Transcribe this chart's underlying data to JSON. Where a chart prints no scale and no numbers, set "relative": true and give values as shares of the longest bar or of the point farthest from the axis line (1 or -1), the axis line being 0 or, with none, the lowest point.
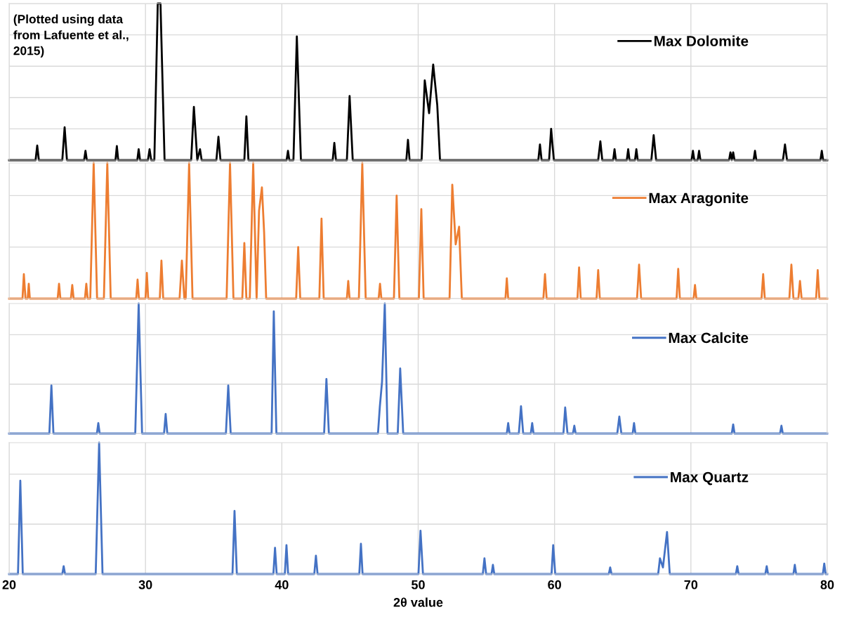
{
  "chart_data": [
    {
      "type": "line",
      "relative": true,
      "xlim": [
        20,
        80
      ],
      "xticks": [
        20,
        30,
        40,
        50,
        60,
        70,
        80
      ],
      "tick_labels": false,
      "grid": true,
      "legend": "top right",
      "marker": "none",
      "annotations": [
        "(Plotted using data\nfrom Lafuente et al.,\n2015)"
      ],
      "series": [
        {
          "name": "Max Dolomite",
          "color": "#000000",
          "x": [
            20,
            21.94,
            22.06,
            22.18,
            23.9,
            24.07,
            24.24,
            25.5,
            25.6,
            25.7,
            27.8,
            27.9,
            28.0,
            29.4,
            29.5,
            29.6,
            30.18,
            30.3,
            30.42,
            30.65,
            30.9,
            31.1,
            31.4,
            33.35,
            33.55,
            33.8,
            34.0,
            34.12,
            35.2,
            35.35,
            35.5,
            37.25,
            37.4,
            37.55,
            40.35,
            40.45,
            40.55,
            40.85,
            41.1,
            41.4,
            43.73,
            43.85,
            43.97,
            44.77,
            44.97,
            45.2,
            49.13,
            49.25,
            49.37,
            50.25,
            50.48,
            50.8,
            51.1,
            51.4,
            51.6,
            58.81,
            58.93,
            59.05,
            59.6,
            59.75,
            59.95,
            63.2,
            63.36,
            63.5,
            64.3,
            64.4,
            64.5,
            65.3,
            65.4,
            65.5,
            65.9,
            66.0,
            66.1,
            67.1,
            67.27,
            67.45,
            70.05,
            70.15,
            70.25,
            70.5,
            70.6,
            70.7,
            72.8,
            72.9,
            73.0,
            73.1,
            73.2,
            74.6,
            74.7,
            74.8,
            76.75,
            76.9,
            77.05,
            79.5,
            79.6,
            79.7,
            80
          ],
          "values": [
            0,
            0,
            0.094,
            0,
            0,
            0.21,
            0,
            0,
            0.06,
            0,
            0,
            0.09,
            0,
            0,
            0.07,
            0,
            0,
            0.07,
            0,
            0,
            1,
            1,
            0,
            0,
            0.34,
            0,
            0.07,
            0,
            0,
            0.15,
            0,
            0,
            0.28,
            0,
            0,
            0.06,
            0,
            0,
            0.79,
            0,
            0,
            0.11,
            0,
            0,
            0.41,
            0,
            0,
            0.13,
            0,
            0,
            0.51,
            0.3,
            0.61,
            0.35,
            0,
            0,
            0.1,
            0,
            0,
            0.2,
            0,
            0,
            0.12,
            0,
            0,
            0.07,
            0,
            0,
            0.07,
            0,
            0,
            0.07,
            0,
            0,
            0.16,
            0,
            0,
            0.06,
            0,
            0,
            0.06,
            0,
            0,
            0.05,
            0,
            0.05,
            0,
            0,
            0.06,
            0,
            0,
            0.1,
            0,
            0,
            0.06,
            0,
            0
          ]
        }
      ]
    },
    {
      "type": "line",
      "relative": true,
      "xlim": [
        20,
        80
      ],
      "xticks": [
        20,
        30,
        40,
        50,
        60,
        70,
        80
      ],
      "tick_labels": false,
      "grid": true,
      "legend": "top right",
      "marker": "none",
      "series": [
        {
          "name": "Max Aragonite",
          "color": "#ed7d31",
          "x": [
            20,
            20.98,
            21.08,
            21.2,
            21.36,
            21.44,
            21.52,
            23.56,
            23.66,
            23.76,
            24.53,
            24.63,
            24.73,
            25.56,
            25.66,
            25.76,
            25.95,
            26.2,
            26.45,
            26.95,
            27.2,
            27.45,
            29.32,
            29.42,
            29.52,
            30.0,
            30.1,
            30.2,
            31.05,
            31.17,
            31.3,
            32.5,
            32.67,
            32.85,
            32.95,
            33.2,
            33.45,
            35.95,
            36.2,
            36.45,
            37.1,
            37.25,
            37.4,
            37.65,
            37.9,
            38.15,
            38.33,
            38.54,
            38.7,
            38.85,
            41.05,
            41.2,
            41.35,
            42.75,
            42.91,
            43.07,
            44.77,
            44.87,
            44.97,
            45.65,
            45.9,
            46.15,
            47.1,
            47.2,
            47.3,
            48.22,
            48.42,
            48.62,
            50.05,
            50.23,
            50.4,
            52.3,
            52.5,
            52.75,
            53.0,
            53.2,
            56.4,
            56.5,
            56.6,
            59.18,
            59.3,
            59.42,
            61.68,
            61.8,
            61.92,
            63.08,
            63.2,
            63.32,
            66.05,
            66.2,
            66.35,
            68.95,
            69.07,
            69.19,
            70.2,
            70.3,
            70.4,
            75.18,
            75.3,
            75.42,
            77.22,
            77.37,
            77.52,
            77.88,
            78.0,
            78.12,
            79.18,
            79.3,
            79.42,
            80
          ],
          "values": [
            0,
            0,
            0.18,
            0,
            0,
            0.11,
            0,
            0,
            0.11,
            0,
            0,
            0.1,
            0,
            0,
            0.11,
            0,
            0,
            1,
            0,
            0,
            1,
            0,
            0,
            0.14,
            0,
            0,
            0.19,
            0,
            0,
            0.28,
            0,
            0,
            0.28,
            0,
            0,
            1,
            0,
            0,
            1,
            0,
            0,
            0.41,
            0,
            0,
            1,
            0,
            0.65,
            0.82,
            0.49,
            0,
            0,
            0.38,
            0,
            0,
            0.59,
            0,
            0,
            0.13,
            0,
            0,
            1,
            0,
            0,
            0.11,
            0,
            0,
            0.76,
            0,
            0,
            0.66,
            0,
            0,
            0.84,
            0.4,
            0.53,
            0,
            0,
            0.15,
            0,
            0,
            0.18,
            0,
            0,
            0.23,
            0,
            0,
            0.21,
            0,
            0,
            0.25,
            0,
            0,
            0.22,
            0,
            0,
            0.1,
            0,
            0,
            0.18,
            0,
            0,
            0.25,
            0,
            0,
            0.13,
            0,
            0,
            0.21,
            0,
            0
          ]
        }
      ]
    },
    {
      "type": "line",
      "relative": true,
      "xlim": [
        20,
        80
      ],
      "xticks": [
        20,
        30,
        40,
        50,
        60,
        70,
        80
      ],
      "tick_labels": false,
      "grid": true,
      "legend": "top right",
      "marker": "none",
      "series": [
        {
          "name": "Max Calcite",
          "color": "#4472c4",
          "x": [
            20,
            22.95,
            23.1,
            23.25,
            26.44,
            26.54,
            26.64,
            29.25,
            29.5,
            29.75,
            31.36,
            31.48,
            31.6,
            35.9,
            36.07,
            36.25,
            39.25,
            39.41,
            39.6,
            43.1,
            43.27,
            43.45,
            47.05,
            47.19,
            47.35,
            47.55,
            47.75,
            48.5,
            48.68,
            48.9,
            56.5,
            56.6,
            56.7,
            57.38,
            57.54,
            57.7,
            58.26,
            58.36,
            58.46,
            60.65,
            60.78,
            60.95,
            61.35,
            61.45,
            61.55,
            64.6,
            64.75,
            64.9,
            65.73,
            65.83,
            65.93,
            73.0,
            73.1,
            73.2,
            76.54,
            76.64,
            76.74,
            80
          ],
          "values": [
            0,
            0,
            0.37,
            0,
            0,
            0.08,
            0,
            0,
            1,
            0,
            0,
            0.15,
            0,
            0,
            0.37,
            0,
            0,
            0.94,
            0,
            0,
            0.42,
            0,
            0,
            0.21,
            0.4,
            1,
            0,
            0,
            0.5,
            0,
            0,
            0.08,
            0,
            0,
            0.21,
            0,
            0,
            0.08,
            0,
            0,
            0.2,
            0,
            0,
            0.06,
            0,
            0,
            0.13,
            0,
            0,
            0.08,
            0,
            0,
            0.07,
            0,
            0,
            0.06,
            0,
            0
          ]
        }
      ]
    },
    {
      "type": "line",
      "relative": true,
      "xlim": [
        20,
        80
      ],
      "xticks": [
        20,
        30,
        40,
        50,
        60,
        70,
        80
      ],
      "tick_labels": "x",
      "grid": true,
      "legend": "top right",
      "marker": "none",
      "xlabel": "2θ value",
      "series": [
        {
          "name": "Max Quartz",
          "color": "#4472c4",
          "x": [
            20,
            20.65,
            20.82,
            21.0,
            23.9,
            24.0,
            24.1,
            26.35,
            26.6,
            26.85,
            36.38,
            36.53,
            36.7,
            39.38,
            39.5,
            39.62,
            40.22,
            40.34,
            40.46,
            42.38,
            42.5,
            42.62,
            45.68,
            45.8,
            45.92,
            50.02,
            50.17,
            50.35,
            54.74,
            54.86,
            54.98,
            55.38,
            55.48,
            55.58,
            59.78,
            59.9,
            60.05,
            63.98,
            64.08,
            64.18,
            67.6,
            67.73,
            67.95,
            68.25,
            68.45,
            73.3,
            73.4,
            73.5,
            75.46,
            75.56,
            75.66,
            77.52,
            77.62,
            77.72,
            79.68,
            79.78,
            79.88,
            80
          ],
          "values": [
            0,
            0,
            0.71,
            0,
            0,
            0.06,
            0,
            0,
            1,
            0,
            0,
            0.48,
            0,
            0,
            0.2,
            0,
            0,
            0.22,
            0,
            0,
            0.14,
            0,
            0,
            0.23,
            0,
            0,
            0.33,
            0,
            0,
            0.12,
            0,
            0,
            0.07,
            0,
            0,
            0.22,
            0,
            0,
            0.05,
            0,
            0,
            0.12,
            0.05,
            0.32,
            0,
            0,
            0.06,
            0,
            0,
            0.06,
            0,
            0,
            0.07,
            0,
            0,
            0.08,
            0,
            0
          ]
        }
      ]
    }
  ]
}
